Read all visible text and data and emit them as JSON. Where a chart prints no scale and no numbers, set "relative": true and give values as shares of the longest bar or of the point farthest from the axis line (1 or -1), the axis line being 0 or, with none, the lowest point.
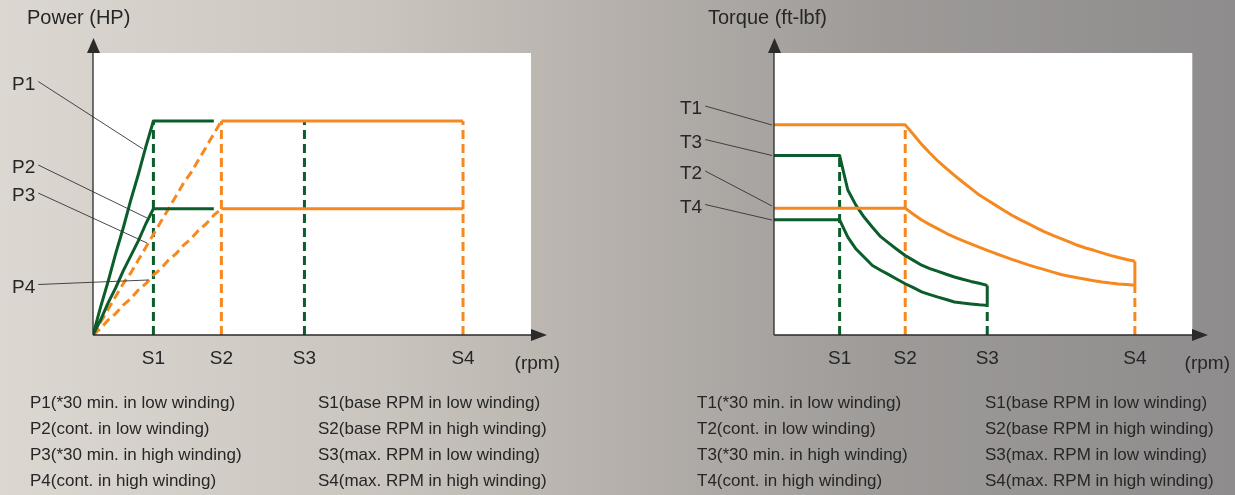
{
  "chart_data": [
    {
      "type": "line",
      "relative": true,
      "ylabel": "Power (HP)",
      "xlabel": "(rpm)",
      "marker": "none",
      "categories": [
        null,
        null,
        null,
        null,
        null,
        null,
        null,
        null,
        "S1",
        null,
        null,
        null,
        null,
        null,
        null,
        null,
        null,
        "S2",
        null,
        null,
        null,
        null,
        null,
        null,
        null,
        null,
        null,
        null,
        "S3",
        null,
        null,
        null,
        null,
        null,
        null,
        null,
        null,
        null,
        null,
        null,
        null,
        null,
        null,
        null,
        null,
        null,
        null,
        null,
        null,
        "S4",
        null,
        null,
        null,
        null,
        null,
        null,
        null,
        null,
        null
      ],
      "series": [
        {
          "color": "#0b5d2b",
          "line_style": "solid",
          "values": [
            0,
            0.13,
            0.25,
            0.38,
            0.5,
            0.63,
            0.75,
            0.88,
            1,
            1,
            1,
            1,
            1,
            1,
            1,
            1,
            1,
            null,
            null,
            null,
            null,
            null,
            null,
            null,
            null,
            null,
            null,
            null,
            null,
            null,
            null,
            null,
            null,
            null,
            null,
            null,
            null,
            null,
            null,
            null,
            null,
            null,
            null,
            null,
            null,
            null,
            null,
            null,
            null,
            null,
            null,
            null,
            null,
            null,
            null,
            null,
            null,
            null,
            null
          ]
        },
        {
          "color": "#0b5d2b",
          "line_style": "solid",
          "values": [
            0,
            0.07,
            0.15,
            0.22,
            0.3,
            0.37,
            0.44,
            0.52,
            0.59,
            0.59,
            0.59,
            0.59,
            0.59,
            0.59,
            0.59,
            0.59,
            0.59,
            null,
            null,
            null,
            null,
            null,
            null,
            null,
            null,
            null,
            null,
            null,
            null,
            null,
            null,
            null,
            null,
            null,
            null,
            null,
            null,
            null,
            null,
            null,
            null,
            null,
            null,
            null,
            null,
            null,
            null,
            null,
            null,
            null,
            null,
            null,
            null,
            null,
            null,
            null,
            null,
            null,
            null
          ]
        },
        {
          "color": "#f5891f",
          "line_style": "dashed",
          "values": [
            0,
            0.06,
            0.12,
            0.18,
            0.24,
            0.29,
            0.35,
            0.41,
            0.47,
            0.53,
            0.59,
            0.65,
            0.71,
            0.76,
            0.82,
            0.88,
            0.94,
            1,
            null,
            null,
            null,
            null,
            null,
            null,
            null,
            null,
            null,
            null,
            null,
            null,
            null,
            null,
            null,
            null,
            null,
            null,
            null,
            null,
            null,
            null,
            null,
            null,
            null,
            null,
            null,
            null,
            null,
            null,
            null,
            null,
            null,
            null,
            null,
            null,
            null,
            null,
            null,
            null,
            null
          ]
        },
        {
          "color": "#f5891f",
          "line_style": "dashed",
          "values": [
            0,
            0.03,
            0.07,
            0.1,
            0.14,
            0.17,
            0.21,
            0.24,
            0.28,
            0.31,
            0.35,
            0.38,
            0.42,
            0.45,
            0.49,
            0.52,
            0.56,
            0.59,
            null,
            null,
            null,
            null,
            null,
            null,
            null,
            null,
            null,
            null,
            null,
            null,
            null,
            null,
            null,
            null,
            null,
            null,
            null,
            null,
            null,
            null,
            null,
            null,
            null,
            null,
            null,
            null,
            null,
            null,
            null,
            null,
            null,
            null,
            null,
            null,
            null,
            null,
            null,
            null,
            null
          ]
        },
        {
          "color": "#f5891f",
          "line_style": "solid",
          "values": [
            null,
            null,
            null,
            null,
            null,
            null,
            null,
            null,
            null,
            null,
            null,
            null,
            null,
            null,
            null,
            null,
            null,
            1,
            1,
            1,
            1,
            1,
            1,
            1,
            1,
            1,
            1,
            1,
            1,
            1,
            1,
            1,
            1,
            1,
            1,
            1,
            1,
            1,
            1,
            1,
            1,
            1,
            1,
            1,
            1,
            1,
            1,
            1,
            1,
            1,
            null,
            null,
            null,
            null,
            null,
            null,
            null,
            null,
            null
          ]
        },
        {
          "color": "#f5891f",
          "line_style": "solid",
          "values": [
            null,
            null,
            null,
            null,
            null,
            null,
            null,
            null,
            null,
            null,
            null,
            null,
            null,
            null,
            null,
            null,
            null,
            0.59,
            0.59,
            0.59,
            0.59,
            0.59,
            0.59,
            0.59,
            0.59,
            0.59,
            0.59,
            0.59,
            0.59,
            0.59,
            0.59,
            0.59,
            0.59,
            0.59,
            0.59,
            0.59,
            0.59,
            0.59,
            0.59,
            0.59,
            0.59,
            0.59,
            0.59,
            0.59,
            0.59,
            0.59,
            0.59,
            0.59,
            0.59,
            0.59,
            null,
            null,
            null,
            null,
            null,
            null,
            null,
            null,
            null
          ]
        },
        {
          "color": "#0b5d2b",
          "line_style": "dashed",
          "x": [
            "S1",
            "S1"
          ],
          "values": [
            0,
            1
          ]
        },
        {
          "color": "#f5891f",
          "line_style": "dashed",
          "x": [
            "S2",
            "S2"
          ],
          "values": [
            0,
            1
          ]
        },
        {
          "color": "#0b5d2b",
          "line_style": "dashed",
          "x": [
            "S3",
            "S3"
          ],
          "values": [
            0,
            1
          ]
        },
        {
          "color": "#f5891f",
          "line_style": "dashed",
          "x": [
            "S4",
            "S4"
          ],
          "values": [
            0,
            1
          ]
        }
      ],
      "annotations": [
        "P1",
        "P2",
        "P3",
        "P4",
        "P1(*30 min. in low winding)",
        "P2(cont. in low winding)",
        "P3(*30 min. in high winding)",
        "P4(cont. in high winding)",
        "S1(base RPM in low winding)",
        "S2(base RPM in high winding)",
        "S3(max. RPM in low winding)",
        "S4(max. RPM in high winding)"
      ]
    },
    {
      "type": "line",
      "relative": true,
      "ylabel": "Torque (ft-lbf)",
      "xlabel": "(rpm)",
      "marker": "none",
      "categories": [
        null,
        null,
        null,
        null,
        null,
        null,
        null,
        null,
        "S1",
        null,
        null,
        null,
        null,
        null,
        null,
        null,
        "S2",
        null,
        null,
        null,
        null,
        null,
        null,
        null,
        null,
        null,
        "S3",
        null,
        null,
        null,
        null,
        null,
        null,
        null,
        null,
        null,
        null,
        null,
        null,
        null,
        null,
        null,
        null,
        null,
        "S4",
        null,
        null,
        null,
        null,
        null,
        null,
        null
      ],
      "series": [
        {
          "color": "#f5891f",
          "line_style": "solid",
          "values": [
            1,
            1,
            1,
            1,
            1,
            1,
            1,
            1,
            1,
            1,
            1,
            1,
            1,
            1,
            1,
            1,
            1,
            0.954,
            0.907,
            0.866,
            0.827,
            0.793,
            0.76,
            0.728,
            0.698,
            0.667,
            0.642,
            0.618,
            0.594,
            0.57,
            0.549,
            0.53,
            0.51,
            0.491,
            0.474,
            0.459,
            0.443,
            0.427,
            0.414,
            0.403,
            0.391,
            0.379,
            0.369,
            0.359,
            0.351,
            null,
            null,
            null,
            null,
            null,
            null,
            null
          ]
        },
        {
          "color": "#f5891f",
          "line_style": "solid",
          "values": [
            0.603,
            0.603,
            0.603,
            0.603,
            0.603,
            0.603,
            0.603,
            0.603,
            0.603,
            0.603,
            0.603,
            0.603,
            0.603,
            0.603,
            0.603,
            0.603,
            0.603,
            0.575,
            0.547,
            0.525,
            0.505,
            0.484,
            0.466,
            0.449,
            0.434,
            0.418,
            0.403,
            0.388,
            0.374,
            0.36,
            0.347,
            0.334,
            0.322,
            0.311,
            0.299,
            0.288,
            0.28,
            0.272,
            0.265,
            0.258,
            0.252,
            0.247,
            0.243,
            0.24,
            0.237,
            null,
            null,
            null,
            null,
            null,
            null,
            null
          ]
        },
        {
          "color": "#0b5d2b",
          "line_style": "solid",
          "values": [
            0.854,
            0.854,
            0.854,
            0.854,
            0.854,
            0.854,
            0.854,
            0.854,
            0.854,
            0.69,
            0.617,
            0.56,
            0.513,
            0.468,
            0.437,
            0.407,
            0.378,
            0.355,
            0.332,
            0.316,
            0.303,
            0.289,
            0.276,
            0.265,
            0.255,
            0.246,
            0.236,
            null,
            null,
            null,
            null,
            null,
            null,
            null,
            null,
            null,
            null,
            null,
            null,
            null,
            null,
            null,
            null,
            null,
            null,
            null,
            null,
            null,
            null,
            null,
            null,
            null
          ]
        },
        {
          "color": "#0b5d2b",
          "line_style": "solid",
          "values": [
            0.548,
            0.548,
            0.548,
            0.548,
            0.548,
            0.548,
            0.548,
            0.548,
            0.548,
            0.466,
            0.409,
            0.37,
            0.331,
            0.308,
            0.287,
            0.265,
            0.244,
            0.225,
            0.205,
            0.192,
            0.18,
            0.169,
            0.157,
            0.152,
            0.148,
            0.144,
            0.141,
            null,
            null,
            null,
            null,
            null,
            null,
            null,
            null,
            null,
            null,
            null,
            null,
            null,
            null,
            null,
            null,
            null,
            null,
            null,
            null,
            null,
            null,
            null,
            null,
            null
          ]
        },
        {
          "color": "#0b5d2b",
          "line_style": "solid",
          "x": [
            "S3",
            "S3"
          ],
          "values": [
            0.141,
            0.236
          ]
        },
        {
          "color": "#f5891f",
          "line_style": "solid",
          "x": [
            "S4",
            "S4"
          ],
          "values": [
            0.237,
            0.351
          ]
        },
        {
          "color": "#0b5d2b",
          "line_style": "dashed",
          "x": [
            "S1",
            "S1"
          ],
          "values": [
            0,
            0.854
          ]
        },
        {
          "color": "#f5891f",
          "line_style": "dashed",
          "x": [
            "S2",
            "S2"
          ],
          "values": [
            0,
            1
          ]
        },
        {
          "color": "#0b5d2b",
          "line_style": "dashed",
          "x": [
            "S3",
            "S3"
          ],
          "values": [
            0,
            0.141
          ]
        },
        {
          "color": "#f5891f",
          "line_style": "dashed",
          "x": [
            "S4",
            "S4"
          ],
          "values": [
            0,
            0.237
          ]
        }
      ],
      "annotations": [
        "T1",
        "T3",
        "T2",
        "T4",
        "T1(*30 min. in low winding)",
        "T2(cont. in low winding)",
        "T3(*30 min. in high winding)",
        "T4(cont. in high winding)",
        "S1(base RPM in low winding)",
        "S2(base RPM in high winding)",
        "S3(max. RPM in low winding)",
        "S4(max. RPM in high winding)"
      ]
    }
  ]
}
